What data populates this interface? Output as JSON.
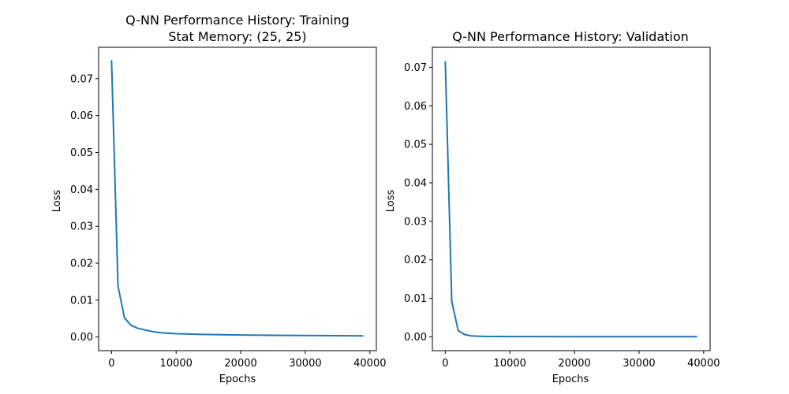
{
  "chart_data": [
    {
      "type": "line",
      "title_line1": "Q-NN Performance History: Training",
      "title_line2": "Stat Memory: (25, 25)",
      "xlabel": "Epochs",
      "ylabel": "Loss",
      "xlim": [
        -2000,
        41000
      ],
      "ylim": [
        -0.0037,
        0.0785
      ],
      "xticks": [
        0,
        10000,
        20000,
        30000,
        40000
      ],
      "xtick_labels": [
        "0",
        "10000",
        "20000",
        "30000",
        "40000"
      ],
      "yticks": [
        0.0,
        0.01,
        0.02,
        0.03,
        0.04,
        0.05,
        0.06,
        0.07
      ],
      "ytick_labels": [
        "0.00",
        "0.01",
        "0.02",
        "0.03",
        "0.04",
        "0.05",
        "0.06",
        "0.07"
      ],
      "grid": false,
      "series": [
        {
          "color": "#1f77b4",
          "x": [
            0,
            1000,
            2000,
            3000,
            4000,
            5000,
            6000,
            7000,
            8000,
            9000,
            10000,
            12000,
            14000,
            16000,
            18000,
            20000,
            25000,
            30000,
            35000,
            39000
          ],
          "y": [
            0.075,
            0.0138,
            0.0052,
            0.0032,
            0.0024,
            0.002,
            0.0016,
            0.0013,
            0.0011,
            0.001,
            0.0009,
            0.0008,
            0.0007,
            0.00065,
            0.0006,
            0.00055,
            0.00045,
            0.0004,
            0.00035,
            0.0003
          ]
        }
      ]
    },
    {
      "type": "line",
      "title_line1": "Q-NN Performance History: Validation",
      "title_line2": "",
      "xlabel": "Epochs",
      "ylabel": "Loss",
      "xlim": [
        -2000,
        41000
      ],
      "ylim": [
        -0.0036,
        0.0752
      ],
      "xticks": [
        0,
        10000,
        20000,
        30000,
        40000
      ],
      "xtick_labels": [
        "0",
        "10000",
        "20000",
        "30000",
        "40000"
      ],
      "yticks": [
        0.0,
        0.01,
        0.02,
        0.03,
        0.04,
        0.05,
        0.06,
        0.07
      ],
      "ytick_labels": [
        "0.00",
        "0.01",
        "0.02",
        "0.03",
        "0.04",
        "0.05",
        "0.06",
        "0.07"
      ],
      "grid": false,
      "series": [
        {
          "color": "#1f77b4",
          "x": [
            0,
            1000,
            2000,
            3000,
            4000,
            5000,
            6000,
            8000,
            10000,
            15000,
            20000,
            25000,
            30000,
            35000,
            39000
          ],
          "y": [
            0.0716,
            0.0092,
            0.0016,
            0.0006,
            0.00025,
            0.00015,
            0.0001,
            8e-05,
            7e-05,
            5e-05,
            4e-05,
            3e-05,
            3e-05,
            2e-05,
            2e-05
          ]
        }
      ]
    }
  ]
}
